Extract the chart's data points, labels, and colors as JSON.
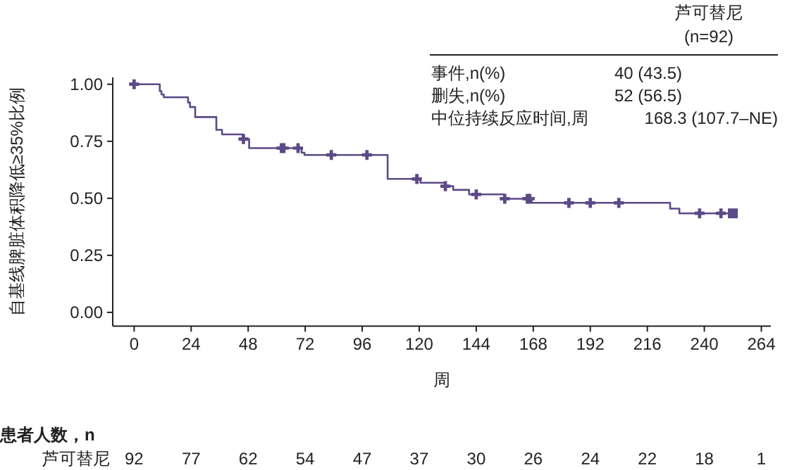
{
  "chart_data": {
    "type": "step",
    "ylabel": "自基线脾脏体积降低≥35%比例",
    "xlabel": "周",
    "xlim": [
      -9,
      268
    ],
    "ylim": [
      -0.06,
      1.03
    ],
    "xticks": [
      0,
      24,
      48,
      72,
      96,
      120,
      144,
      168,
      192,
      216,
      240,
      264
    ],
    "yticks": [
      {
        "value": 0,
        "label": "0.00"
      },
      {
        "value": 0.25,
        "label": "0.25"
      },
      {
        "value": 0.5,
        "label": "0.50"
      },
      {
        "value": 0.75,
        "label": "0.75"
      },
      {
        "value": 1,
        "label": "1.00"
      }
    ],
    "grid": false,
    "series": [
      {
        "color": "#5b4a86",
        "marker": "none",
        "x": [
          0,
          10.8,
          11.5,
          12.5,
          22.7,
          23.5,
          25.7,
          34.6,
          37,
          45.8,
          48.4,
          70.5,
          71.7,
          106.7,
          120.5,
          130.8,
          134.3,
          141,
          155.7,
          167.3,
          225.6,
          229.5,
          252
        ],
        "values": [
          1.0,
          0.97,
          0.955,
          0.943,
          0.92,
          0.9,
          0.856,
          0.8,
          0.78,
          0.76,
          0.72,
          0.7,
          0.69,
          0.585,
          0.568,
          0.553,
          0.537,
          0.517,
          0.498,
          0.48,
          0.455,
          0.434,
          0.434
        ]
      },
      {
        "type": "scatter",
        "color": "#5b4a86",
        "marker": "cross",
        "x": [
          0,
          46,
          62,
          63,
          69,
          83,
          98,
          119,
          131,
          144,
          156,
          165.5,
          166.5,
          183,
          192,
          204,
          238,
          247
        ],
        "values": [
          1.0,
          0.76,
          0.72,
          0.72,
          0.72,
          0.69,
          0.69,
          0.585,
          0.553,
          0.517,
          0.498,
          0.498,
          0.498,
          0.48,
          0.48,
          0.48,
          0.434,
          0.434
        ]
      },
      {
        "type": "scatter",
        "color": "#5b4a86",
        "marker": "square",
        "x": [
          252
        ],
        "values": [
          0.434
        ]
      }
    ],
    "annotations": [
      "芦可替尼",
      "(n=92)",
      "事件,n(%)",
      "40 (43.5)",
      "删失,n(%)",
      "52 (56.5)",
      "中位持续反应时间,周",
      "168.3 (107.7–NE)",
      "患者人数，n",
      "芦可替尼",
      "92",
      "77",
      "62",
      "54",
      "47",
      "37",
      "30",
      "26",
      "24",
      "22",
      "18",
      "1"
    ]
  }
}
